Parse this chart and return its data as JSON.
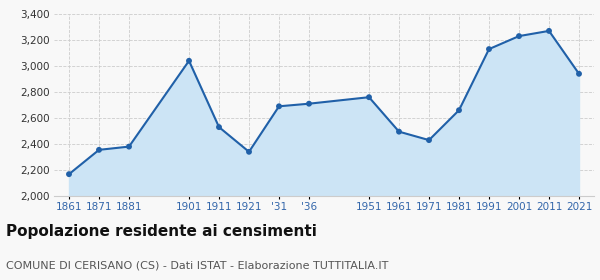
{
  "values": [
    2168,
    2355,
    2380,
    3040,
    2530,
    2340,
    2690,
    2710,
    2760,
    2495,
    2430,
    2660,
    3130,
    3230,
    3270,
    2940
  ],
  "x_positions": [
    0,
    1,
    2,
    4,
    5,
    6,
    7,
    8,
    10,
    11,
    12,
    13,
    14,
    15,
    16,
    17
  ],
  "tick_positions": [
    0,
    1,
    2,
    4,
    5,
    6,
    7,
    8,
    10,
    11,
    12,
    13,
    14,
    15,
    16,
    17
  ],
  "tick_labels": [
    "1861",
    "1871",
    "1881",
    "1901",
    "1911",
    "1921",
    "'31",
    "'36",
    "1951",
    "1961",
    "1971",
    "1981",
    "1991",
    "2001",
    "2011",
    "2021"
  ],
  "ylim": [
    2000,
    3400
  ],
  "yticks": [
    2000,
    2200,
    2400,
    2600,
    2800,
    3000,
    3200,
    3400
  ],
  "xlim": [
    -0.5,
    17.5
  ],
  "line_color": "#2060a8",
  "fill_color": "#cce4f5",
  "marker_color": "#2060a8",
  "grid_color": "#cccccc",
  "bg_color": "#f8f8f8",
  "title": "Popolazione residente ai censimenti",
  "subtitle": "COMUNE DI CERISANO (CS) - Dati ISTAT - Elaborazione TUTTITALIA.IT",
  "title_fontsize": 11,
  "subtitle_fontsize": 8,
  "tick_fontsize": 7.5,
  "ytick_fontsize": 7.5
}
